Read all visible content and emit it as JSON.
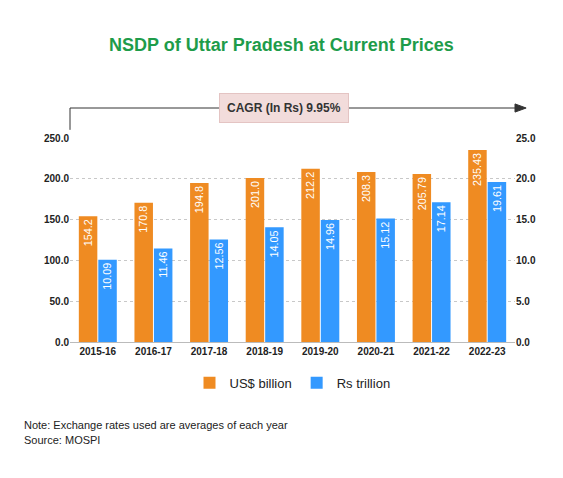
{
  "chart_data": {
    "type": "bar",
    "title": "NSDP of Uttar Pradesh at Current Prices",
    "annotations": [
      "CAGR (In Rs) 9.95%"
    ],
    "note": "Note: Exchange rates used are averages of each year",
    "source": "Source: MOSPI",
    "categories": [
      "2015-16",
      "2016-17",
      "2017-18",
      "2018-19",
      "2019-20",
      "2020-21",
      "2021-22",
      "2022-23"
    ],
    "series": [
      {
        "name": "US$ billion",
        "color": "#ef8b22",
        "values": [
          154.2,
          170.8,
          194.8,
          201.0,
          212.2,
          208.3,
          205.79,
          235.43
        ],
        "value_labels": [
          "154.2",
          "170.8",
          "194.8",
          "201.0",
          "212.2",
          "208.3",
          "205.79",
          "235.43"
        ]
      },
      {
        "name": "Rs trillion",
        "color": "#3399ff",
        "axis": "y2",
        "values": [
          10.09,
          11.46,
          12.56,
          14.05,
          14.96,
          15.12,
          17.14,
          19.61
        ]
      }
    ],
    "ylim": [
      0,
      250
    ],
    "yticks": [
      {
        "value": 0,
        "label": "0.0"
      },
      {
        "value": 50,
        "label": "50.0"
      },
      {
        "value": 100,
        "label": "100.0"
      },
      {
        "value": 150,
        "label": "150.0"
      },
      {
        "value": 200,
        "label": "200.0"
      },
      {
        "value": 250,
        "label": "250.0"
      }
    ],
    "y2lim": [
      0,
      25
    ],
    "y2ticks": [
      {
        "value": 0,
        "label": "0.0"
      },
      {
        "value": 5,
        "label": "5.0"
      },
      {
        "value": 10,
        "label": "10.0"
      },
      {
        "value": 15,
        "label": "15.0"
      },
      {
        "value": 20,
        "label": "20.0"
      },
      {
        "value": 25,
        "label": "25.0"
      }
    ],
    "grid": true,
    "legend": "bottom",
    "data_labels": true
  }
}
